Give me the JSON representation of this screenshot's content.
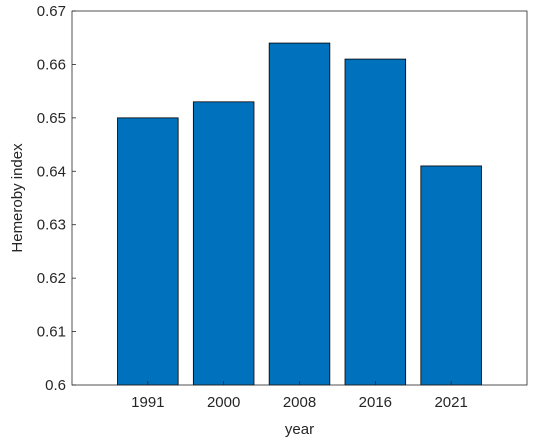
{
  "chart_data": {
    "type": "bar",
    "categories": [
      "1991",
      "2000",
      "2008",
      "2016",
      "2021"
    ],
    "values": [
      0.65,
      0.653,
      0.664,
      0.661,
      0.641
    ],
    "title": "",
    "xlabel": "year",
    "ylabel": "Hemeroby index",
    "ylim": [
      0.6,
      0.67
    ],
    "yticks": [
      "0.6",
      "0.61",
      "0.62",
      "0.63",
      "0.64",
      "0.65",
      "0.66",
      "0.67"
    ],
    "bar_color": "#0072BD",
    "grid": false,
    "legend": "none"
  }
}
